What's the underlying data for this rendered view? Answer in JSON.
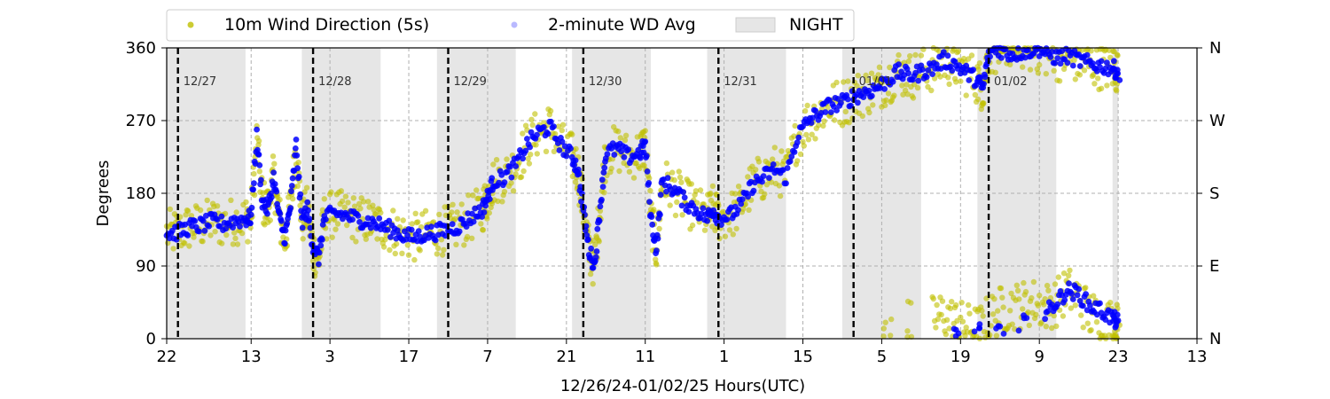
{
  "chart_data": {
    "type": "scatter",
    "xlabel": "12/26/24-01/02/25  Hours(UTC)",
    "ylabel": "Degrees",
    "x_unit": "hours (UTC)",
    "xlim": [
      22,
      205
    ],
    "ylim": [
      0,
      360
    ],
    "x_ticks": [
      {
        "value": 22,
        "label": "22"
      },
      {
        "value": 37,
        "label": "13"
      },
      {
        "value": 51,
        "label": "3"
      },
      {
        "value": 65,
        "label": "17"
      },
      {
        "value": 79,
        "label": "7"
      },
      {
        "value": 93,
        "label": "21"
      },
      {
        "value": 107,
        "label": "11"
      },
      {
        "value": 121,
        "label": "1"
      },
      {
        "value": 135,
        "label": "15"
      },
      {
        "value": 149,
        "label": "5"
      },
      {
        "value": 163,
        "label": "19"
      },
      {
        "value": 177,
        "label": "9"
      },
      {
        "value": 191,
        "label": "23"
      },
      {
        "value": 205,
        "label": "13"
      }
    ],
    "y_ticks_left": [
      0,
      90,
      180,
      270,
      360
    ],
    "y_ticks_right": [
      {
        "value": 0,
        "label": "N"
      },
      {
        "value": 90,
        "label": "E"
      },
      {
        "value": 180,
        "label": "S"
      },
      {
        "value": 270,
        "label": "W"
      },
      {
        "value": 360,
        "label": "N"
      }
    ],
    "grid": true,
    "legend_position": "top",
    "legend": [
      {
        "label": "10m Wind Direction (5s)",
        "color": "#bfbf00",
        "marker": "circle"
      },
      {
        "label": "2-minute WD Avg",
        "color": "#8080ff",
        "marker": "circle"
      },
      {
        "label": "NIGHT",
        "color": "#e6e6e6",
        "marker": "box"
      }
    ],
    "day_boundaries": [
      {
        "x": 24,
        "label": "12/27"
      },
      {
        "x": 48,
        "label": "12/28"
      },
      {
        "x": 72,
        "label": "12/29"
      },
      {
        "x": 96,
        "label": "12/30"
      },
      {
        "x": 120,
        "label": "12/31"
      },
      {
        "x": 144,
        "label": "01/01"
      },
      {
        "x": 168,
        "label": "01/02"
      }
    ],
    "night_periods": [
      [
        22,
        36
      ],
      [
        46,
        60
      ],
      [
        70,
        84
      ],
      [
        94,
        108
      ],
      [
        118,
        132
      ],
      [
        142,
        156
      ],
      [
        166,
        180
      ],
      [
        190,
        191
      ]
    ],
    "series": [
      {
        "name": "10m Wind Direction (5s)",
        "color": "#bfbf00",
        "spread": 30,
        "points": [
          [
            22,
            130
          ],
          [
            24,
            132
          ],
          [
            26,
            138
          ],
          [
            28,
            140
          ],
          [
            30,
            145
          ],
          [
            32,
            142
          ],
          [
            34,
            146
          ],
          [
            36,
            148
          ],
          [
            37,
            150
          ],
          [
            38,
            245
          ],
          [
            39,
            170
          ],
          [
            40,
            160
          ],
          [
            41,
            200
          ],
          [
            42,
            150
          ],
          [
            43,
            120
          ],
          [
            44,
            165
          ],
          [
            45,
            240
          ],
          [
            46,
            145
          ],
          [
            47,
            160
          ],
          [
            48,
            110
          ],
          [
            49,
            95
          ],
          [
            50,
            150
          ],
          [
            52,
            155
          ],
          [
            54,
            152
          ],
          [
            56,
            148
          ],
          [
            58,
            145
          ],
          [
            60,
            140
          ],
          [
            62,
            135
          ],
          [
            64,
            128
          ],
          [
            66,
            125
          ],
          [
            68,
            130
          ],
          [
            70,
            132
          ],
          [
            72,
            135
          ],
          [
            74,
            140
          ],
          [
            76,
            150
          ],
          [
            78,
            160
          ],
          [
            79,
            175
          ],
          [
            80,
            195
          ],
          [
            82,
            200
          ],
          [
            84,
            215
          ],
          [
            86,
            240
          ],
          [
            88,
            255
          ],
          [
            90,
            262
          ],
          [
            92,
            240
          ],
          [
            94,
            225
          ],
          [
            95,
            210
          ],
          [
            96,
            160
          ],
          [
            97,
            110
          ],
          [
            98,
            90
          ],
          [
            99,
            165
          ],
          [
            100,
            230
          ],
          [
            102,
            235
          ],
          [
            104,
            225
          ],
          [
            106,
            230
          ],
          [
            107,
            240
          ],
          [
            108,
            150
          ],
          [
            109,
            110
          ],
          [
            110,
            195
          ],
          [
            112,
            185
          ],
          [
            114,
            170
          ],
          [
            116,
            160
          ],
          [
            118,
            150
          ],
          [
            119,
            160
          ],
          [
            120,
            150
          ],
          [
            122,
            152
          ],
          [
            124,
            165
          ],
          [
            126,
            190
          ],
          [
            128,
            200
          ],
          [
            130,
            210
          ],
          [
            132,
            200
          ],
          [
            134,
            250
          ],
          [
            136,
            270
          ],
          [
            138,
            280
          ],
          [
            140,
            290
          ],
          [
            142,
            292
          ],
          [
            144,
            300
          ],
          [
            146,
            305
          ],
          [
            148,
            310
          ],
          [
            150,
            320
          ],
          [
            152,
            330
          ],
          [
            154,
            325
          ],
          [
            156,
            330
          ],
          [
            158,
            335
          ],
          [
            160,
            345
          ],
          [
            162,
            340
          ],
          [
            164,
            330
          ],
          [
            166,
            320
          ],
          [
            167,
            310
          ],
          [
            168,
            355
          ],
          [
            170,
            358
          ],
          [
            172,
            352
          ],
          [
            174,
            355
          ],
          [
            176,
            358
          ],
          [
            178,
            355
          ],
          [
            180,
            348
          ],
          [
            182,
            350
          ],
          [
            184,
            345
          ],
          [
            186,
            340
          ],
          [
            188,
            338
          ],
          [
            190,
            335
          ],
          [
            191,
            330
          ],
          [
            150,
            10
          ],
          [
            154,
            18
          ],
          [
            158,
            25
          ],
          [
            160,
            30
          ],
          [
            162,
            20
          ],
          [
            164,
            15
          ],
          [
            166,
            10
          ],
          [
            168,
            25
          ],
          [
            170,
            35
          ],
          [
            172,
            40
          ],
          [
            174,
            42
          ],
          [
            176,
            45
          ],
          [
            178,
            40
          ],
          [
            180,
            45
          ],
          [
            182,
            60
          ],
          [
            184,
            50
          ],
          [
            186,
            30
          ],
          [
            188,
            25
          ],
          [
            190,
            20
          ],
          [
            191,
            15
          ]
        ]
      },
      {
        "name": "2-minute WD Avg",
        "color": "#0000ff",
        "spread": 10,
        "points": [
          [
            22,
            130
          ],
          [
            24,
            132
          ],
          [
            26,
            138
          ],
          [
            28,
            140
          ],
          [
            30,
            145
          ],
          [
            32,
            142
          ],
          [
            34,
            146
          ],
          [
            36,
            148
          ],
          [
            37,
            150
          ],
          [
            38,
            250
          ],
          [
            39,
            170
          ],
          [
            40,
            160
          ],
          [
            41,
            200
          ],
          [
            42,
            150
          ],
          [
            43,
            125
          ],
          [
            44,
            165
          ],
          [
            45,
            240
          ],
          [
            46,
            145
          ],
          [
            47,
            160
          ],
          [
            48,
            115
          ],
          [
            49,
            100
          ],
          [
            50,
            150
          ],
          [
            52,
            155
          ],
          [
            54,
            152
          ],
          [
            56,
            148
          ],
          [
            58,
            145
          ],
          [
            60,
            140
          ],
          [
            62,
            135
          ],
          [
            64,
            128
          ],
          [
            66,
            125
          ],
          [
            68,
            130
          ],
          [
            70,
            132
          ],
          [
            72,
            135
          ],
          [
            74,
            140
          ],
          [
            76,
            150
          ],
          [
            78,
            160
          ],
          [
            79,
            175
          ],
          [
            80,
            195
          ],
          [
            82,
            200
          ],
          [
            84,
            215
          ],
          [
            86,
            240
          ],
          [
            88,
            255
          ],
          [
            90,
            262
          ],
          [
            92,
            240
          ],
          [
            94,
            225
          ],
          [
            95,
            210
          ],
          [
            96,
            160
          ],
          [
            97,
            110
          ],
          [
            98,
            90
          ],
          [
            99,
            165
          ],
          [
            100,
            230
          ],
          [
            102,
            235
          ],
          [
            104,
            225
          ],
          [
            106,
            230
          ],
          [
            107,
            240
          ],
          [
            108,
            150
          ],
          [
            109,
            110
          ],
          [
            110,
            195
          ],
          [
            112,
            185
          ],
          [
            114,
            170
          ],
          [
            116,
            160
          ],
          [
            118,
            150
          ],
          [
            119,
            160
          ],
          [
            120,
            150
          ],
          [
            122,
            152
          ],
          [
            124,
            165
          ],
          [
            126,
            190
          ],
          [
            128,
            200
          ],
          [
            130,
            210
          ],
          [
            132,
            200
          ],
          [
            134,
            250
          ],
          [
            136,
            270
          ],
          [
            138,
            280
          ],
          [
            140,
            290
          ],
          [
            142,
            292
          ],
          [
            144,
            300
          ],
          [
            146,
            305
          ],
          [
            148,
            310
          ],
          [
            150,
            320
          ],
          [
            152,
            330
          ],
          [
            154,
            325
          ],
          [
            156,
            330
          ],
          [
            158,
            335
          ],
          [
            160,
            345
          ],
          [
            162,
            340
          ],
          [
            164,
            330
          ],
          [
            166,
            320
          ],
          [
            167,
            310
          ],
          [
            168,
            355
          ],
          [
            170,
            358
          ],
          [
            172,
            352
          ],
          [
            174,
            355
          ],
          [
            176,
            358
          ],
          [
            178,
            355
          ],
          [
            180,
            348
          ],
          [
            182,
            350
          ],
          [
            184,
            345
          ],
          [
            186,
            340
          ],
          [
            188,
            338
          ],
          [
            190,
            335
          ],
          [
            191,
            330
          ],
          [
            162,
            5
          ],
          [
            166,
            8
          ],
          [
            170,
            12
          ],
          [
            174,
            20
          ],
          [
            178,
            30
          ],
          [
            180,
            45
          ],
          [
            182,
            60
          ],
          [
            184,
            55
          ],
          [
            186,
            40
          ],
          [
            188,
            35
          ],
          [
            190,
            25
          ],
          [
            191,
            20
          ]
        ]
      }
    ]
  }
}
